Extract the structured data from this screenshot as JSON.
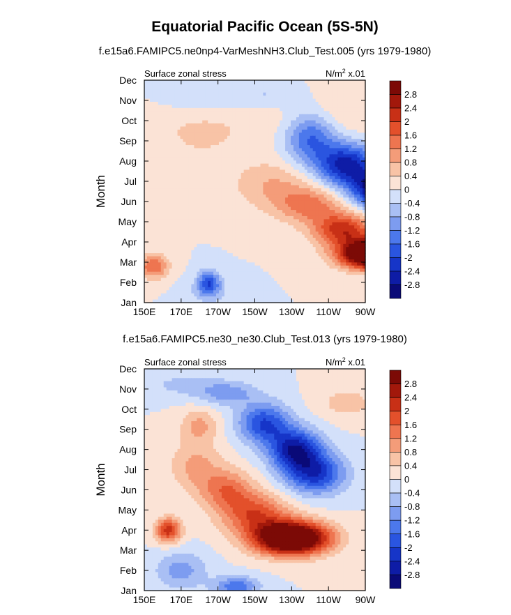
{
  "title": "Equatorial Pacific Ocean (5S-5N)",
  "colors": {
    "levels_colors": [
      "#0a0a78",
      "#0e1ca6",
      "#1635c8",
      "#2a55e0",
      "#4c78ec",
      "#7d9cf0",
      "#a9bff4",
      "#d3e0fa",
      "#fbe3d6",
      "#f8c3a6",
      "#f49c79",
      "#ee7550",
      "#e3502b",
      "#c83016",
      "#a2180b",
      "#7c0a06"
    ]
  },
  "chart_data": [
    {
      "type": "heatmap",
      "subtitle": "f.e15a6.FAMIPC5.ne0np4-VarMeshNH3.Club_Test.005 (yrs 1979-1980)",
      "left_label": "Surface zonal stress",
      "right_label": "N/m",
      "right_label_sup": "2",
      "right_label_tail": " x.01",
      "ylabel": "Month",
      "x_ticks": [
        "150E",
        "170E",
        "170W",
        "150W",
        "130W",
        "110W",
        "90W"
      ],
      "y_ticks": [
        "Jan",
        "Feb",
        "Mar",
        "Apr",
        "May",
        "Jun",
        "Jul",
        "Aug",
        "Sep",
        "Oct",
        "Nov",
        "Dec"
      ],
      "colorbar_labels": [
        "2.8",
        "2.4",
        "2",
        "1.6",
        "1.2",
        "0.8",
        "0.4",
        "0",
        "-0.4",
        "-0.8",
        "-1.2",
        "-1.6",
        "-2",
        "-2.4",
        "-2.8"
      ],
      "levels": [
        -2.8,
        -2.4,
        -2.0,
        -1.6,
        -1.2,
        -0.8,
        -0.4,
        0,
        0.4,
        0.8,
        1.2,
        1.6,
        2.0,
        2.4,
        2.8
      ],
      "lon_range": [
        150,
        270
      ],
      "month_range": [
        1,
        12
      ],
      "features": [
        {
          "lon": 125,
          "month": 3.4,
          "value": 5.2,
          "spread_lon": 18,
          "spread_month": 0.7
        },
        {
          "lon": 108,
          "month": 4.6,
          "value": 2.2,
          "spread_lon": 16,
          "spread_month": 0.8
        },
        {
          "lon": 90,
          "month": 5.8,
          "value": 1.3,
          "spread_lon": 18,
          "spread_month": 0.9
        },
        {
          "lon": 70,
          "month": 6.8,
          "value": 0.8,
          "spread_lon": 22,
          "spread_month": 1.2
        },
        {
          "lon": 5,
          "month": 2.8,
          "value": 1.6,
          "spread_lon": 8,
          "spread_month": 0.6
        },
        {
          "lon": 30,
          "month": 9.5,
          "value": 0.5,
          "spread_lon": 25,
          "spread_month": 1.6
        },
        {
          "lon": 95,
          "month": 10.3,
          "value": 0.5,
          "spread_lon": 40,
          "spread_month": 1.6
        },
        {
          "lon": 90,
          "month": 9.2,
          "value": -1.8,
          "spread_lon": 14,
          "spread_month": 1.3
        },
        {
          "lon": 110,
          "month": 7.8,
          "value": -2.6,
          "spread_lon": 16,
          "spread_month": 1.1
        },
        {
          "lon": 128,
          "month": 6.6,
          "value": -3.2,
          "spread_lon": 14,
          "spread_month": 0.9
        },
        {
          "lon": 68,
          "month": 11.3,
          "value": -0.6,
          "spread_lon": 22,
          "spread_month": 0.8
        },
        {
          "lon": 30,
          "month": 11.0,
          "value": -0.4,
          "spread_lon": 20,
          "spread_month": 0.9
        },
        {
          "lon": 35,
          "month": 2.0,
          "value": -1.8,
          "spread_lon": 6,
          "spread_month": 0.6
        },
        {
          "lon": 35,
          "month": 1.5,
          "value": -0.5,
          "spread_lon": 12,
          "spread_month": 0.6
        }
      ]
    },
    {
      "type": "heatmap",
      "subtitle": "f.e15a6.FAMIPC5.ne30_ne30.Club_Test.013 (yrs 1979-1980)",
      "left_label": "Surface zonal stress",
      "right_label": "N/m",
      "right_label_sup": "2",
      "right_label_tail": " x.01",
      "ylabel": "Month",
      "x_ticks": [
        "150E",
        "170E",
        "170W",
        "150W",
        "130W",
        "110W",
        "90W"
      ],
      "y_ticks": [
        "Jan",
        "Feb",
        "Mar",
        "Apr",
        "May",
        "Jun",
        "Jul",
        "Aug",
        "Sep",
        "Oct",
        "Nov",
        "Dec"
      ],
      "colorbar_labels": [
        "2.8",
        "2.4",
        "2",
        "1.6",
        "1.2",
        "0.8",
        "0.4",
        "0",
        "-0.4",
        "-0.8",
        "-1.2",
        "-1.6",
        "-2",
        "-2.4",
        "-2.8"
      ],
      "levels": [
        -2.8,
        -2.4,
        -2.0,
        -1.6,
        -1.2,
        -0.8,
        -0.4,
        0,
        0.4,
        0.8,
        1.2,
        1.6,
        2.0,
        2.4,
        2.8
      ],
      "lon_range": [
        150,
        270
      ],
      "month_range": [
        1,
        12
      ],
      "features": [
        {
          "lon": 80,
          "month": 3.6,
          "value": 4.8,
          "spread_lon": 20,
          "spread_month": 0.8
        },
        {
          "lon": 60,
          "month": 4.8,
          "value": 1.8,
          "spread_lon": 18,
          "spread_month": 1.0
        },
        {
          "lon": 45,
          "month": 6.0,
          "value": 1.4,
          "spread_lon": 14,
          "spread_month": 1.0
        },
        {
          "lon": 28,
          "month": 7.2,
          "value": 0.9,
          "spread_lon": 14,
          "spread_month": 1.3
        },
        {
          "lon": 13,
          "month": 4.0,
          "value": 2.2,
          "spread_lon": 7,
          "spread_month": 0.6
        },
        {
          "lon": 30,
          "month": 9.2,
          "value": 0.9,
          "spread_lon": 10,
          "spread_month": 0.8
        },
        {
          "lon": 110,
          "month": 10.3,
          "value": 0.6,
          "spread_lon": 16,
          "spread_month": 0.8
        },
        {
          "lon": 65,
          "month": 9.3,
          "value": -2.0,
          "spread_lon": 14,
          "spread_month": 1.0
        },
        {
          "lon": 82,
          "month": 8.0,
          "value": -2.6,
          "spread_lon": 14,
          "spread_month": 1.0
        },
        {
          "lon": 93,
          "month": 6.8,
          "value": -2.2,
          "spread_lon": 16,
          "spread_month": 1.0
        },
        {
          "lon": 45,
          "month": 10.8,
          "value": -1.0,
          "spread_lon": 16,
          "spread_month": 0.6
        },
        {
          "lon": 20,
          "month": 11.2,
          "value": -0.5,
          "spread_lon": 20,
          "spread_month": 0.6
        },
        {
          "lon": 20,
          "month": 2.0,
          "value": -1.0,
          "spread_lon": 14,
          "spread_month": 0.9
        },
        {
          "lon": 50,
          "month": 1.2,
          "value": -1.5,
          "spread_lon": 12,
          "spread_month": 0.5
        }
      ]
    }
  ]
}
